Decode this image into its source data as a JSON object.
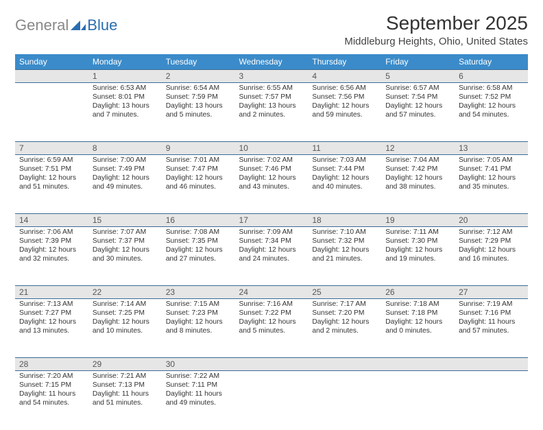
{
  "brand": {
    "gray": "General",
    "blue": "Blue"
  },
  "title": "September 2025",
  "location": "Middleburg Heights, Ohio, United States",
  "colors": {
    "header_bg": "#3b8bca",
    "row_border": "#3b6a94",
    "daynum_bg": "#e6e6e6"
  },
  "days_of_week": [
    "Sunday",
    "Monday",
    "Tuesday",
    "Wednesday",
    "Thursday",
    "Friday",
    "Saturday"
  ],
  "weeks": [
    [
      {
        "n": "",
        "sr": "",
        "ss": "",
        "dl": ""
      },
      {
        "n": "1",
        "sr": "Sunrise: 6:53 AM",
        "ss": "Sunset: 8:01 PM",
        "dl": "Daylight: 13 hours and 7 minutes."
      },
      {
        "n": "2",
        "sr": "Sunrise: 6:54 AM",
        "ss": "Sunset: 7:59 PM",
        "dl": "Daylight: 13 hours and 5 minutes."
      },
      {
        "n": "3",
        "sr": "Sunrise: 6:55 AM",
        "ss": "Sunset: 7:57 PM",
        "dl": "Daylight: 13 hours and 2 minutes."
      },
      {
        "n": "4",
        "sr": "Sunrise: 6:56 AM",
        "ss": "Sunset: 7:56 PM",
        "dl": "Daylight: 12 hours and 59 minutes."
      },
      {
        "n": "5",
        "sr": "Sunrise: 6:57 AM",
        "ss": "Sunset: 7:54 PM",
        "dl": "Daylight: 12 hours and 57 minutes."
      },
      {
        "n": "6",
        "sr": "Sunrise: 6:58 AM",
        "ss": "Sunset: 7:52 PM",
        "dl": "Daylight: 12 hours and 54 minutes."
      }
    ],
    [
      {
        "n": "7",
        "sr": "Sunrise: 6:59 AM",
        "ss": "Sunset: 7:51 PM",
        "dl": "Daylight: 12 hours and 51 minutes."
      },
      {
        "n": "8",
        "sr": "Sunrise: 7:00 AM",
        "ss": "Sunset: 7:49 PM",
        "dl": "Daylight: 12 hours and 49 minutes."
      },
      {
        "n": "9",
        "sr": "Sunrise: 7:01 AM",
        "ss": "Sunset: 7:47 PM",
        "dl": "Daylight: 12 hours and 46 minutes."
      },
      {
        "n": "10",
        "sr": "Sunrise: 7:02 AM",
        "ss": "Sunset: 7:46 PM",
        "dl": "Daylight: 12 hours and 43 minutes."
      },
      {
        "n": "11",
        "sr": "Sunrise: 7:03 AM",
        "ss": "Sunset: 7:44 PM",
        "dl": "Daylight: 12 hours and 40 minutes."
      },
      {
        "n": "12",
        "sr": "Sunrise: 7:04 AM",
        "ss": "Sunset: 7:42 PM",
        "dl": "Daylight: 12 hours and 38 minutes."
      },
      {
        "n": "13",
        "sr": "Sunrise: 7:05 AM",
        "ss": "Sunset: 7:41 PM",
        "dl": "Daylight: 12 hours and 35 minutes."
      }
    ],
    [
      {
        "n": "14",
        "sr": "Sunrise: 7:06 AM",
        "ss": "Sunset: 7:39 PM",
        "dl": "Daylight: 12 hours and 32 minutes."
      },
      {
        "n": "15",
        "sr": "Sunrise: 7:07 AM",
        "ss": "Sunset: 7:37 PM",
        "dl": "Daylight: 12 hours and 30 minutes."
      },
      {
        "n": "16",
        "sr": "Sunrise: 7:08 AM",
        "ss": "Sunset: 7:35 PM",
        "dl": "Daylight: 12 hours and 27 minutes."
      },
      {
        "n": "17",
        "sr": "Sunrise: 7:09 AM",
        "ss": "Sunset: 7:34 PM",
        "dl": "Daylight: 12 hours and 24 minutes."
      },
      {
        "n": "18",
        "sr": "Sunrise: 7:10 AM",
        "ss": "Sunset: 7:32 PM",
        "dl": "Daylight: 12 hours and 21 minutes."
      },
      {
        "n": "19",
        "sr": "Sunrise: 7:11 AM",
        "ss": "Sunset: 7:30 PM",
        "dl": "Daylight: 12 hours and 19 minutes."
      },
      {
        "n": "20",
        "sr": "Sunrise: 7:12 AM",
        "ss": "Sunset: 7:29 PM",
        "dl": "Daylight: 12 hours and 16 minutes."
      }
    ],
    [
      {
        "n": "21",
        "sr": "Sunrise: 7:13 AM",
        "ss": "Sunset: 7:27 PM",
        "dl": "Daylight: 12 hours and 13 minutes."
      },
      {
        "n": "22",
        "sr": "Sunrise: 7:14 AM",
        "ss": "Sunset: 7:25 PM",
        "dl": "Daylight: 12 hours and 10 minutes."
      },
      {
        "n": "23",
        "sr": "Sunrise: 7:15 AM",
        "ss": "Sunset: 7:23 PM",
        "dl": "Daylight: 12 hours and 8 minutes."
      },
      {
        "n": "24",
        "sr": "Sunrise: 7:16 AM",
        "ss": "Sunset: 7:22 PM",
        "dl": "Daylight: 12 hours and 5 minutes."
      },
      {
        "n": "25",
        "sr": "Sunrise: 7:17 AM",
        "ss": "Sunset: 7:20 PM",
        "dl": "Daylight: 12 hours and 2 minutes."
      },
      {
        "n": "26",
        "sr": "Sunrise: 7:18 AM",
        "ss": "Sunset: 7:18 PM",
        "dl": "Daylight: 12 hours and 0 minutes."
      },
      {
        "n": "27",
        "sr": "Sunrise: 7:19 AM",
        "ss": "Sunset: 7:16 PM",
        "dl": "Daylight: 11 hours and 57 minutes."
      }
    ],
    [
      {
        "n": "28",
        "sr": "Sunrise: 7:20 AM",
        "ss": "Sunset: 7:15 PM",
        "dl": "Daylight: 11 hours and 54 minutes."
      },
      {
        "n": "29",
        "sr": "Sunrise: 7:21 AM",
        "ss": "Sunset: 7:13 PM",
        "dl": "Daylight: 11 hours and 51 minutes."
      },
      {
        "n": "30",
        "sr": "Sunrise: 7:22 AM",
        "ss": "Sunset: 7:11 PM",
        "dl": "Daylight: 11 hours and 49 minutes."
      },
      {
        "n": "",
        "sr": "",
        "ss": "",
        "dl": ""
      },
      {
        "n": "",
        "sr": "",
        "ss": "",
        "dl": ""
      },
      {
        "n": "",
        "sr": "",
        "ss": "",
        "dl": ""
      },
      {
        "n": "",
        "sr": "",
        "ss": "",
        "dl": ""
      }
    ]
  ]
}
